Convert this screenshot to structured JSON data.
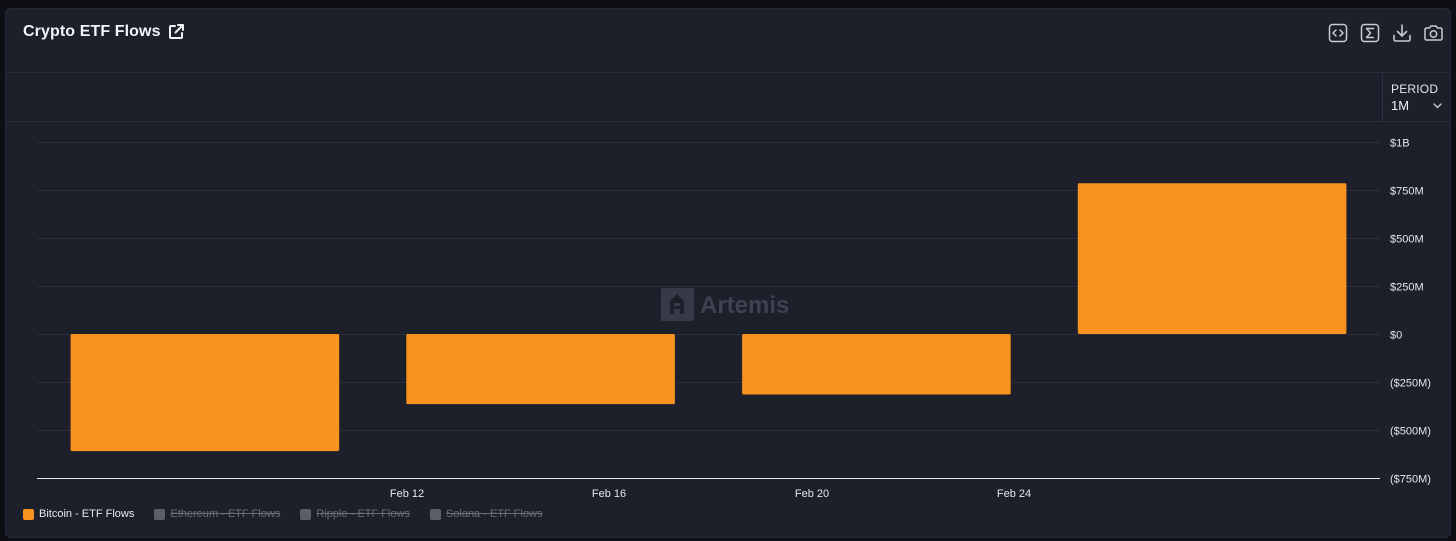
{
  "header": {
    "title": "Crypto ETF Flows",
    "toolbar": [
      {
        "icon": "embed-code-icon"
      },
      {
        "icon": "sigma-icon"
      },
      {
        "icon": "download-icon"
      },
      {
        "icon": "camera-icon"
      }
    ]
  },
  "period": {
    "label": "PERIOD",
    "value": "1M"
  },
  "watermark": "Artemis",
  "colors": {
    "bar": "#f7931e",
    "background": "#1d1f2b",
    "grid": "#2c2e3c",
    "axis_text": "#e6e7ec",
    "legend_off": "#6a6c78"
  },
  "legend": [
    {
      "label": "Bitcoin - ETF Flows",
      "color": "#f7931e",
      "active": true
    },
    {
      "label": "Ethereum - ETF Flows",
      "color": "#5c5e68",
      "active": false
    },
    {
      "label": "Ripple - ETF Flows",
      "color": "#5c5e68",
      "active": false
    },
    {
      "label": "Solana - ETF Flows",
      "color": "#5c5e68",
      "active": false
    }
  ],
  "chart_data": {
    "type": "bar",
    "title": "Crypto ETF Flows",
    "x_tick_labels": [
      "Feb 12",
      "Feb 16",
      "Feb 20",
      "Feb 24"
    ],
    "series": [
      {
        "name": "Bitcoin - ETF Flows",
        "color": "#f7931e",
        "values": [
          -610000000,
          -365000000,
          -315000000,
          785000000
        ]
      }
    ],
    "y_ticks": [
      1000000000,
      750000000,
      500000000,
      250000000,
      0,
      -250000000,
      -500000000,
      -750000000
    ],
    "y_tick_labels": [
      "$1B",
      "$750M",
      "$500M",
      "$250M",
      "$0",
      "($250M)",
      "($500M)",
      "($750M)"
    ],
    "ylim": [
      -750000000,
      1000000000
    ],
    "grid": true,
    "legend_position": "bottom-left"
  }
}
